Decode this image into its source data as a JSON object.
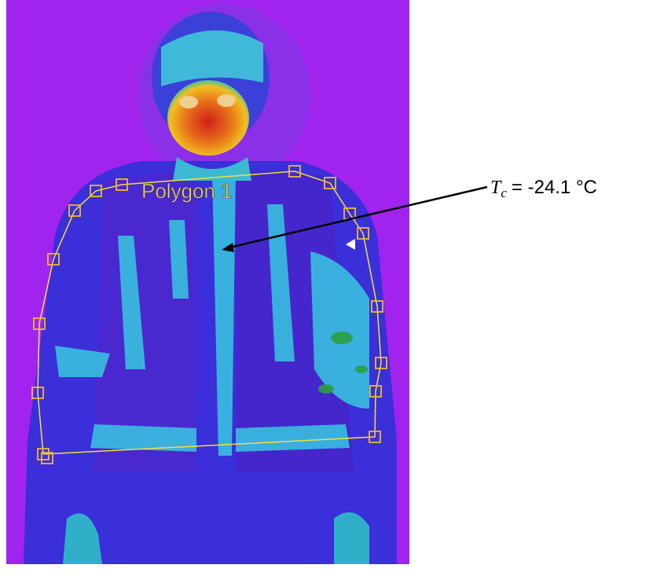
{
  "image": {
    "region_label": "Polygon 1"
  },
  "annotation": {
    "symbol": "T",
    "subscript": "c",
    "text": "= -24.1 °C"
  }
}
